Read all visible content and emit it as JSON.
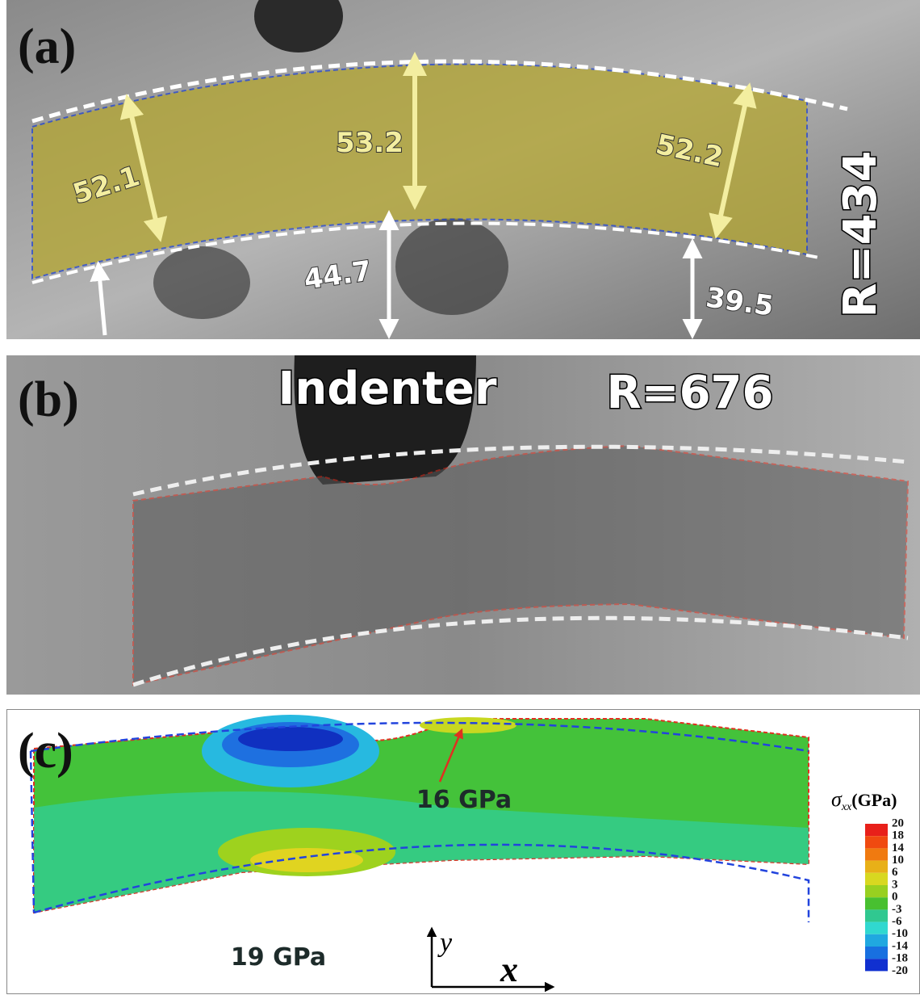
{
  "panels": [
    {
      "label": "(a)",
      "annotations": [
        "52.1",
        "53.2",
        "52.2",
        "44.7",
        "39.5",
        "R=434"
      ]
    },
    {
      "label": "(b)",
      "annotations": [
        "Indenter",
        "R=676"
      ]
    },
    {
      "label": "(c)",
      "annotations": [
        "16 GPa",
        "19 GPa"
      ],
      "axes": [
        "y",
        "x"
      ],
      "colorbar": {
        "symbol": "σ",
        "subscript": "xx",
        "unit": "(GPa)",
        "ticks": [
          20,
          18,
          14,
          10,
          6,
          3,
          0,
          -3,
          -6,
          -10,
          -14,
          -18,
          -20
        ]
      }
    }
  ]
}
